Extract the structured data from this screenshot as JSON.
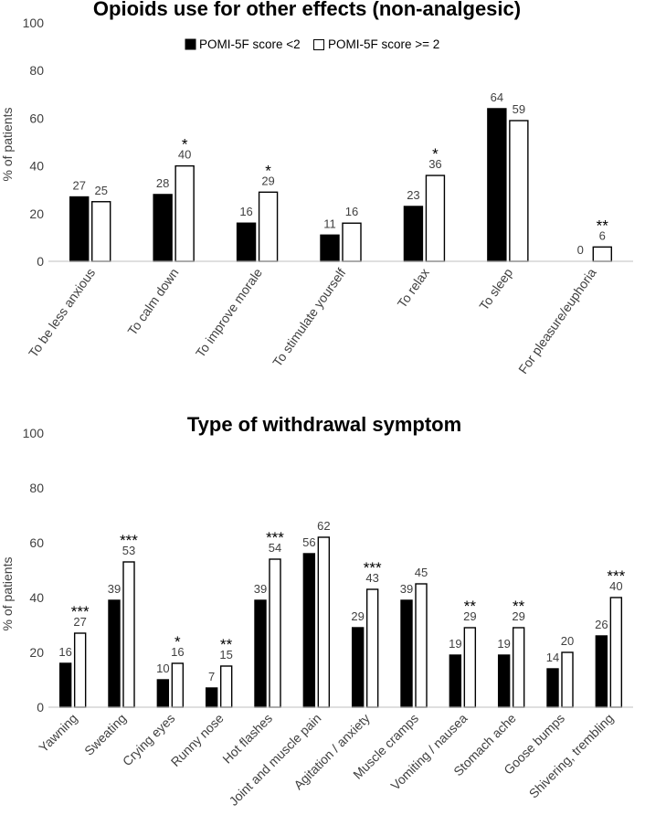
{
  "chart_data": [
    {
      "type": "bar",
      "title": "Opioids use for other effects (non-analgesic)",
      "ylabel": "% of patients",
      "xlabel": "",
      "ylim": [
        0,
        100
      ],
      "yticks": [
        0,
        20,
        40,
        60,
        80,
        100
      ],
      "legend": "top-center",
      "categories": [
        "To be less anxious",
        "To calm down",
        "To improve morale",
        "To stimulate yourself",
        "To relax",
        "To sleep",
        "For pleasure/euphoria"
      ],
      "series": [
        {
          "name": "POMI-5F score <2",
          "color": "#000000",
          "values": [
            27,
            28,
            16,
            11,
            23,
            64,
            0
          ]
        },
        {
          "name": "POMI-5F score >= 2",
          "color": "#ffffff",
          "values": [
            25,
            40,
            29,
            16,
            36,
            59,
            6
          ]
        }
      ],
      "value_labels": [
        [
          "27",
          "28",
          "16",
          "11",
          "23",
          "64",
          "0"
        ],
        [
          "25",
          "40",
          "29",
          "16",
          "36",
          "59",
          "6"
        ]
      ],
      "significance": [
        "",
        "*",
        "*",
        "",
        "*",
        "",
        "**"
      ]
    },
    {
      "type": "bar",
      "title": "Type of withdrawal symptom",
      "ylabel": "% of patients",
      "xlabel": "",
      "ylim": [
        0,
        100
      ],
      "yticks": [
        0,
        20,
        40,
        60,
        80,
        100
      ],
      "categories": [
        "Yawning",
        "Sweating",
        "Crying eyes",
        "Runny nose",
        "Hot flashes",
        "Joint and muscle pain",
        "Agitation / anxiety",
        "Muscle cramps",
        "Vomiting / nausea",
        "Stomach ache",
        "Goose bumps",
        "Shivering, trembling"
      ],
      "series": [
        {
          "name": "POMI-5F score <2",
          "color": "#000000",
          "values": [
            16,
            39,
            10,
            7,
            39,
            56,
            29,
            39,
            19,
            19,
            14,
            26
          ]
        },
        {
          "name": "POMI-5F score >= 2",
          "color": "#ffffff",
          "values": [
            27,
            53,
            16,
            15,
            54,
            62,
            43,
            45,
            29,
            29,
            20,
            40
          ]
        }
      ],
      "value_labels": [
        [
          "16",
          "39",
          "10",
          "7",
          "39",
          "56",
          "29",
          "39",
          "19",
          "19",
          "14",
          "26"
        ],
        [
          "27",
          "53",
          "16",
          "15",
          "54",
          "62",
          "43",
          "45",
          "29",
          "29",
          "20",
          "40"
        ]
      ],
      "significance": [
        "***",
        "***",
        "*",
        "**",
        "***",
        "",
        "***",
        "",
        "**",
        "**",
        "",
        "***"
      ]
    }
  ]
}
